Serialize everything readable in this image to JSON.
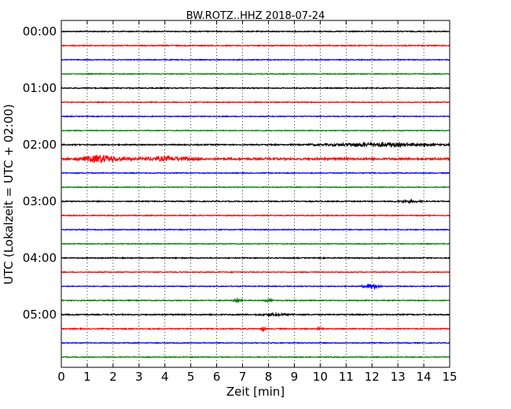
{
  "chart_data": {
    "type": "line",
    "title": "BW.ROTZ..HHZ 2018-07-24",
    "xlabel": "Zeit  [min]",
    "ylabel": "UTC (Lokalzeit = UTC + 02:00)",
    "xlim": [
      0,
      15
    ],
    "x_ticks": [
      0,
      1,
      2,
      3,
      4,
      5,
      6,
      7,
      8,
      9,
      10,
      11,
      12,
      13,
      14,
      15
    ],
    "y_tick_labels": [
      "00:00",
      "01:00",
      "02:00",
      "03:00",
      "04:00",
      "05:00"
    ],
    "grid": "vertical dotted",
    "trace_colors": [
      "#000000",
      "#ff0000",
      "#0000ff",
      "#008000"
    ],
    "series": [
      {
        "offset": "00:00",
        "color": "#000000",
        "noise": 0.6,
        "events": []
      },
      {
        "offset": "00:15",
        "color": "#ff0000",
        "noise": 0.6,
        "events": []
      },
      {
        "offset": "00:30",
        "color": "#0000ff",
        "noise": 0.5,
        "events": []
      },
      {
        "offset": "00:45",
        "color": "#008000",
        "noise": 0.5,
        "events": []
      },
      {
        "offset": "01:00",
        "color": "#000000",
        "noise": 0.6,
        "events": []
      },
      {
        "offset": "01:15",
        "color": "#ff0000",
        "noise": 0.5,
        "events": []
      },
      {
        "offset": "01:30",
        "color": "#0000ff",
        "noise": 0.5,
        "events": []
      },
      {
        "offset": "01:45",
        "color": "#008000",
        "noise": 0.5,
        "events": []
      },
      {
        "offset": "02:00",
        "color": "#000000",
        "noise": 0.7,
        "events": [
          {
            "start": 9.5,
            "end": 15,
            "amp": 2.2
          }
        ]
      },
      {
        "offset": "02:15",
        "color": "#ff0000",
        "noise": 1.2,
        "events": [
          {
            "start": 0.5,
            "end": 2.5,
            "amp": 4.5
          },
          {
            "start": 2.5,
            "end": 5.6,
            "amp": 2.0
          }
        ]
      },
      {
        "offset": "02:30",
        "color": "#0000ff",
        "noise": 0.5,
        "events": []
      },
      {
        "offset": "02:45",
        "color": "#008000",
        "noise": 0.5,
        "events": []
      },
      {
        "offset": "03:00",
        "color": "#000000",
        "noise": 0.6,
        "events": [
          {
            "start": 12.8,
            "end": 14.0,
            "amp": 1.4
          }
        ]
      },
      {
        "offset": "03:15",
        "color": "#ff0000",
        "noise": 0.5,
        "events": []
      },
      {
        "offset": "03:30",
        "color": "#0000ff",
        "noise": 0.5,
        "events": []
      },
      {
        "offset": "03:45",
        "color": "#008000",
        "noise": 0.5,
        "events": []
      },
      {
        "offset": "04:00",
        "color": "#000000",
        "noise": 0.6,
        "events": []
      },
      {
        "offset": "04:15",
        "color": "#ff0000",
        "noise": 0.5,
        "events": []
      },
      {
        "offset": "04:30",
        "color": "#0000ff",
        "noise": 0.5,
        "events": [
          {
            "start": 11.6,
            "end": 12.4,
            "amp": 3.2
          }
        ]
      },
      {
        "offset": "04:45",
        "color": "#008000",
        "noise": 0.6,
        "events": [
          {
            "start": 6.6,
            "end": 7.0,
            "amp": 1.8
          },
          {
            "start": 7.8,
            "end": 8.2,
            "amp": 1.6
          }
        ]
      },
      {
        "offset": "05:00",
        "color": "#000000",
        "noise": 0.7,
        "events": [
          {
            "start": 7.5,
            "end": 9.0,
            "amp": 1.2
          }
        ]
      },
      {
        "offset": "05:15",
        "color": "#ff0000",
        "noise": 0.6,
        "events": [
          {
            "start": 7.7,
            "end": 7.9,
            "amp": 3.5
          },
          {
            "start": 9.8,
            "end": 10.1,
            "amp": 2.0
          }
        ]
      },
      {
        "offset": "05:30",
        "color": "#0000ff",
        "noise": 0.5,
        "events": []
      },
      {
        "offset": "05:45",
        "color": "#008000",
        "noise": 0.5,
        "events": []
      }
    ]
  }
}
